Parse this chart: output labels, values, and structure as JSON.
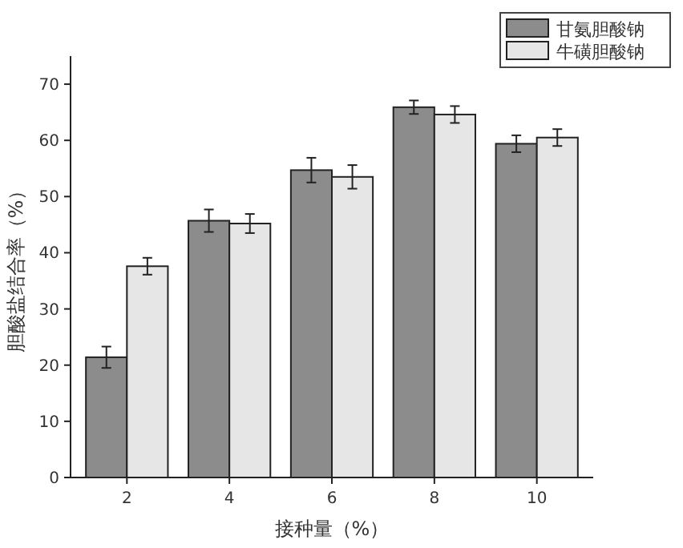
{
  "chart_data": {
    "type": "bar",
    "xlabel": "接种量（%）",
    "ylabel": "胆酸盐结合率（%）",
    "categories": [
      "2",
      "4",
      "6",
      "8",
      "10"
    ],
    "series": [
      {
        "name": "甘氨胆酸钠",
        "color": "#8c8c8c",
        "values": [
          21.4,
          45.7,
          54.7,
          65.9,
          59.4
        ],
        "errors": [
          1.9,
          2,
          2.2,
          1.2,
          1.5
        ]
      },
      {
        "name": "牛磺胆酸钠",
        "color": "#e6e6e6",
        "values": [
          37.6,
          45.2,
          53.5,
          64.6,
          60.5
        ],
        "errors": [
          1.5,
          1.7,
          2.1,
          1.5,
          1.5
        ]
      }
    ],
    "ylim": [
      0,
      75
    ],
    "yticks": [
      0,
      10,
      20,
      30,
      40,
      50,
      60,
      70
    ],
    "grid": false,
    "legend": "top right"
  }
}
